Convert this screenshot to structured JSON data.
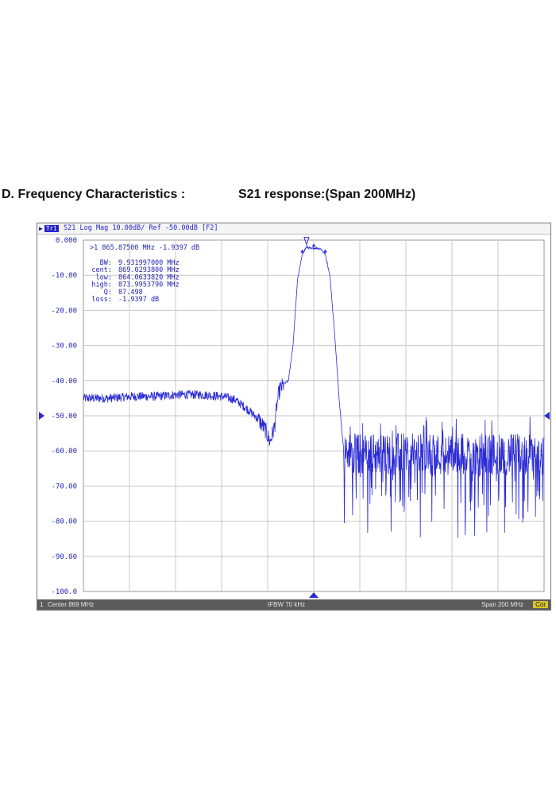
{
  "heading": {
    "section_title": "D. Frequency Characteristics :",
    "sub_title": "S21 response:(Span 200MHz)"
  },
  "analyzer": {
    "trace_badge": "Tr1",
    "trace_label": "S21 Log Mag 10.00dB/ Ref -50.00dB [F2]",
    "marker_readout": ">1  865.87500 MHz -1.9397 dB",
    "stats": [
      {
        "label": "BW:",
        "value": "9.931997000 MHz"
      },
      {
        "label": "cent:",
        "value": "869.0293800 MHz"
      },
      {
        "label": "low:",
        "value": "864.0633820 MHz"
      },
      {
        "label": "high:",
        "value": "873.9953790 MHz"
      },
      {
        "label": "Q:",
        "value": "87.498"
      },
      {
        "label": "loss:",
        "value": "-1.9397 dB"
      }
    ],
    "status": {
      "channel": "1",
      "center": "Center 869 MHz",
      "ifbw": "IFBW 70 kHz",
      "span": "Span 200 MHz",
      "cor": "Cor"
    },
    "colors": {
      "trace": "#2b2bd6",
      "grid": "#c8c8c8",
      "label": "#1f1fb0"
    }
  },
  "chart_data": {
    "type": "line",
    "y_ticks": [
      "0.000",
      "-10.00",
      "-20.00",
      "-30.00",
      "-40.00",
      "-50.00",
      "-60.00",
      "-70.00",
      "-80.00",
      "-90.00",
      "-100.0"
    ],
    "ylim": [
      -100,
      0
    ],
    "xlim": [
      769,
      969
    ],
    "x_unit": "MHz",
    "y_unit": "dB",
    "reference_level": -50,
    "grid": true,
    "series": [
      {
        "x": [
          769,
          780,
          790,
          800,
          810,
          820,
          830,
          835,
          840,
          845,
          848,
          850,
          852,
          853,
          854,
          856,
          858,
          860,
          862,
          864.06,
          865.88,
          868,
          870,
          872,
          873.99,
          876,
          878,
          880,
          882,
          884,
          886,
          888,
          890,
          900,
          910,
          920,
          930,
          940,
          950,
          960,
          969
        ],
        "y": [
          -45,
          -45,
          -44.5,
          -44.5,
          -44,
          -44,
          -44.5,
          -45.5,
          -48,
          -51,
          -54,
          -57.5,
          -53,
          -47,
          -43,
          -41,
          -40,
          -30,
          -11,
          -4,
          -1.9,
          -2.5,
          -2.2,
          -2.5,
          -4,
          -10,
          -26,
          -45,
          -60,
          -64,
          -63,
          -62,
          -61,
          -61,
          -60,
          -60,
          -60,
          -60,
          -60,
          -60,
          -60
        ],
        "noise_floor": -61,
        "marker": {
          "x": 865.875,
          "y": -1.9397
        }
      }
    ]
  }
}
